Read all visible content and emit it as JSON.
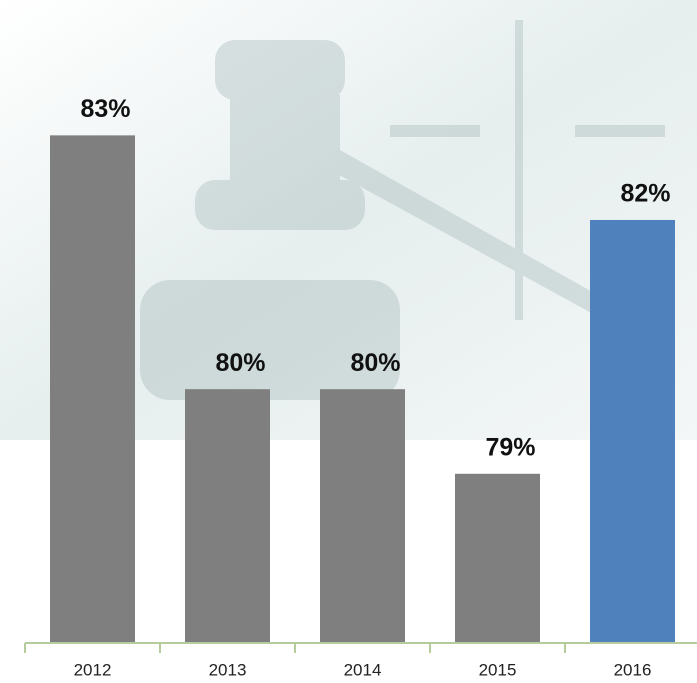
{
  "chart_data": {
    "type": "bar",
    "categories": [
      "2012",
      "2013",
      "2014",
      "2015",
      "2016"
    ],
    "values": [
      83,
      80,
      80,
      79,
      82
    ],
    "value_labels": [
      "83%",
      "80%",
      "80%",
      "79%",
      "82%"
    ],
    "colors": [
      "#7f7f7f",
      "#7f7f7f",
      "#7f7f7f",
      "#7f7f7f",
      "#4f81bd"
    ],
    "ylim": [
      77,
      84.6
    ]
  }
}
